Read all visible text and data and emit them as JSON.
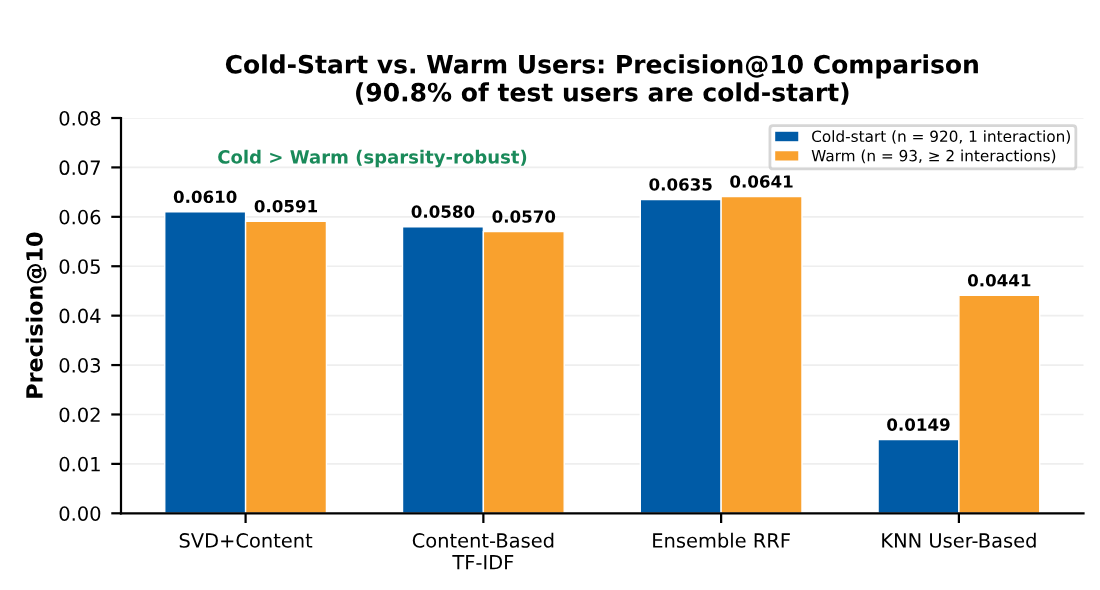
{
  "chart_data": {
    "type": "bar",
    "title": "Cold-Start vs. Warm Users: Precision@10 Comparison\n(90.8% of test users are cold-start)",
    "ylabel": "Precision@10",
    "categories": [
      "SVD+Content",
      "Content-Based\nTF-IDF",
      "Ensemble RRF",
      "KNN User-Based"
    ],
    "series": [
      {
        "name": "Cold-start (n = 920, 1 interaction)",
        "color": "#005ba6",
        "values": [
          0.061,
          0.058,
          0.0635,
          0.0149
        ],
        "value_labels": [
          "0.0610",
          "0.0580",
          "0.0635",
          "0.0149"
        ]
      },
      {
        "name": "Warm (n = 93, ≥ 2 interactions)",
        "color": "#f9a12e",
        "values": [
          0.0591,
          0.057,
          0.0641,
          0.0441
        ],
        "value_labels": [
          "0.0591",
          "0.0570",
          "0.0641",
          "0.0441"
        ]
      }
    ],
    "annotations": [
      "Cold > Warm (sparsity-robust)"
    ],
    "ylim": [
      0,
      0.08
    ],
    "yticks": [
      {
        "value": 0,
        "label": "0.00"
      },
      {
        "value": 0.01,
        "label": "0.01"
      },
      {
        "value": 0.02,
        "label": "0.02"
      },
      {
        "value": 0.03,
        "label": "0.03"
      },
      {
        "value": 0.04,
        "label": "0.04"
      },
      {
        "value": 0.05,
        "label": "0.05"
      },
      {
        "value": 0.06,
        "label": "0.06"
      },
      {
        "value": 0.07,
        "label": "0.07"
      },
      {
        "value": 0.08,
        "label": "0.08"
      }
    ],
    "grid": "y",
    "legend": "top right"
  }
}
